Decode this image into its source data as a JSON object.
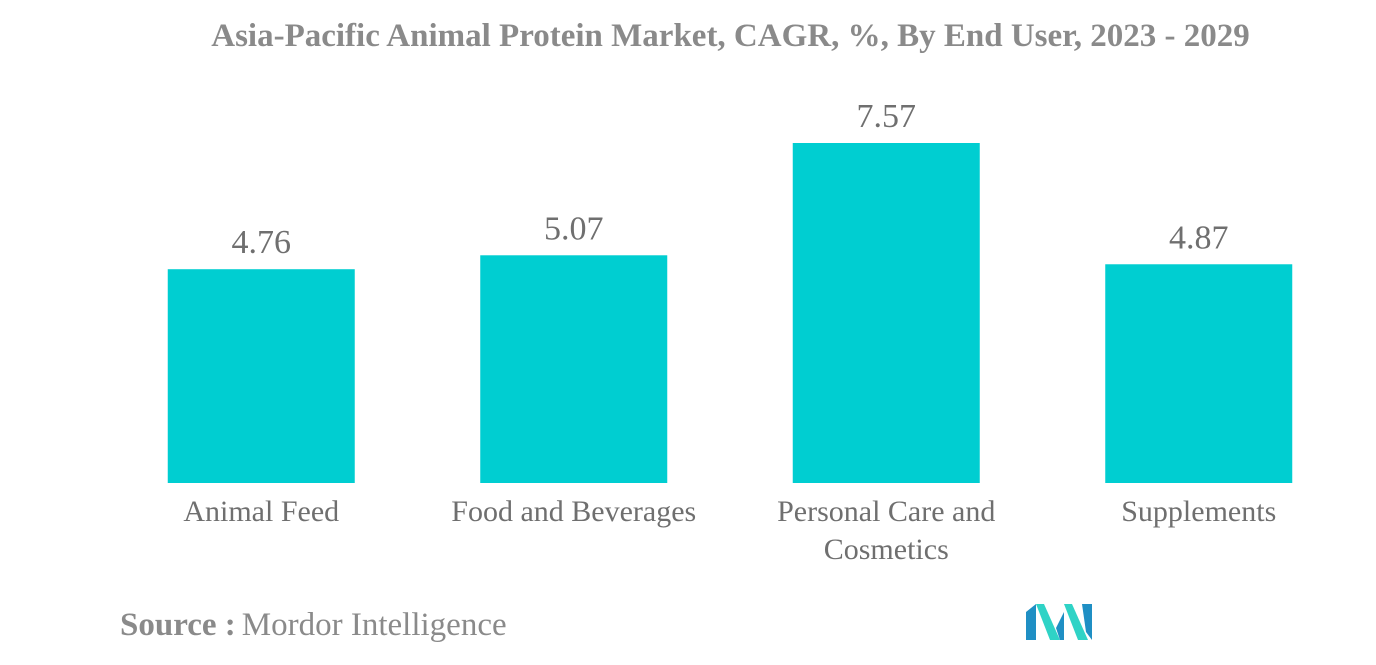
{
  "chart_data": {
    "type": "bar",
    "title": "Asia-Pacific Animal Protein Market, CAGR, %, By End User, 2023 - 2029",
    "categories": [
      [
        "Animal Feed"
      ],
      [
        "Food and Beverages"
      ],
      [
        "Personal Care and",
        "Cosmetics"
      ],
      [
        "Supplements"
      ]
    ],
    "values": [
      4.76,
      5.07,
      7.57,
      4.87
    ],
    "value_labels": [
      "4.76",
      "5.07",
      "7.57",
      "4.87"
    ],
    "bar_color": "#00ced1",
    "ylim": [
      0,
      7.57
    ],
    "grid": false,
    "legend": "none"
  },
  "source": {
    "label": "Source :",
    "value": "Mordor Intelligence"
  },
  "logo": {
    "icon": "mordor-intelligence-logo",
    "colors": [
      "#1f8fc4",
      "#2fd3c6"
    ]
  }
}
